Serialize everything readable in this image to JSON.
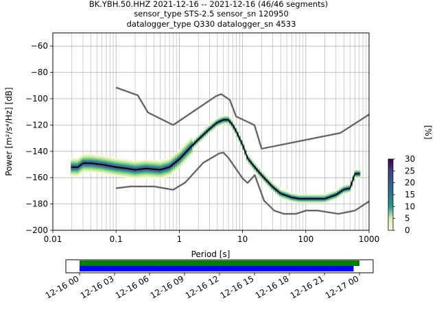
{
  "title": {
    "line1": "BK.YBH.50.HHZ   2021-12-16 -- 2021-12-16  (46/46 segments)",
    "line2": "sensor_type STS-2.5 sensor_sn 120950",
    "line3": "datalogger_type Q330 datalogger_sn 4533"
  },
  "chart_data": [
    {
      "type": "heatmap",
      "xlabel": "Period [s]",
      "ylabel": "Power [m²/s⁴/Hz] [dB]",
      "xscale": "log",
      "xlim": [
        0.01,
        1000
      ],
      "ylim": [
        -200,
        -50
      ],
      "xticks": [
        0.01,
        0.1,
        1,
        10,
        100,
        1000
      ],
      "xtick_labels": [
        "0.01",
        "0.1",
        "1",
        "10",
        "100",
        "1000"
      ],
      "yticks": [
        -200,
        -180,
        -160,
        -140,
        -120,
        -100,
        -80,
        -60
      ],
      "ytick_labels": [
        "−200",
        "−180",
        "−160",
        "−140",
        "−120",
        "−100",
        "−80",
        "−60"
      ],
      "grid": true,
      "colorbar": {
        "label": "[%]",
        "ticks": [
          0,
          5,
          10,
          15,
          20,
          25,
          30
        ],
        "tick_labels": [
          "0",
          "5",
          "10",
          "15",
          "20",
          "25",
          "30"
        ],
        "range": [
          0,
          30
        ]
      },
      "series": [
        {
          "style": "black-line",
          "x": [
            0.02,
            0.025,
            0.03,
            0.04,
            0.06,
            0.1,
            0.15,
            0.2,
            0.3,
            0.5,
            0.7,
            1,
            1.5,
            2,
            3,
            4,
            5,
            6,
            7,
            8,
            10,
            12,
            15,
            20,
            30,
            40,
            60,
            80,
            100,
            150,
            200,
            300,
            400,
            500,
            600,
            700
          ],
          "y": [
            -152,
            -152,
            -149,
            -149,
            -150,
            -152,
            -153,
            -154,
            -153,
            -154,
            -152,
            -146,
            -137,
            -131,
            -123,
            -118,
            -116,
            -116,
            -120,
            -125,
            -135,
            -145,
            -151,
            -158,
            -167,
            -172,
            -175,
            -176,
            -176,
            -176,
            -176,
            -173,
            -169,
            -168,
            -157,
            -157
          ]
        },
        {
          "style": "gray-model-high",
          "x": [
            0.1,
            0.22,
            0.32,
            0.8,
            3.8,
            4.6,
            6.3,
            7.9,
            15.4,
            20,
            354,
            1000
          ],
          "y": [
            -91.5,
            -97.4,
            -110.5,
            -120,
            -98,
            -96.5,
            -101,
            -113.5,
            -120,
            -138,
            -126,
            -112
          ]
        },
        {
          "style": "gray-model-low",
          "x": [
            0.1,
            0.17,
            0.4,
            0.8,
            1.24,
            2.4,
            4.3,
            5,
            6,
            10,
            12,
            15.6,
            21.9,
            31.6,
            45,
            70,
            101,
            154,
            328,
            600,
            1000
          ],
          "y": [
            -168,
            -166.7,
            -166.7,
            -169.2,
            -163.7,
            -148.6,
            -141.5,
            -141,
            -145,
            -160.5,
            -164,
            -158,
            -177.5,
            -185,
            -187.5,
            -187.5,
            -185,
            -185,
            -187.5,
            -185,
            -178
          ]
        }
      ]
    },
    {
      "type": "timeline",
      "tick_labels": [
        "12-16 00",
        "12-16 03",
        "12-16 06",
        "12-16 09",
        "12-16 12",
        "12-16 15",
        "12-16 18",
        "12-16 21",
        "12-17 00"
      ],
      "bars": [
        {
          "color": "#008000",
          "start_h": 0.0,
          "end_h": 24.0
        },
        {
          "color": "#0000ff",
          "start_h": 0.0,
          "end_h": 23.5
        }
      ]
    }
  ],
  "colors": {
    "median": "#000000",
    "model": "#666666",
    "grid": "#b0b0b0"
  }
}
